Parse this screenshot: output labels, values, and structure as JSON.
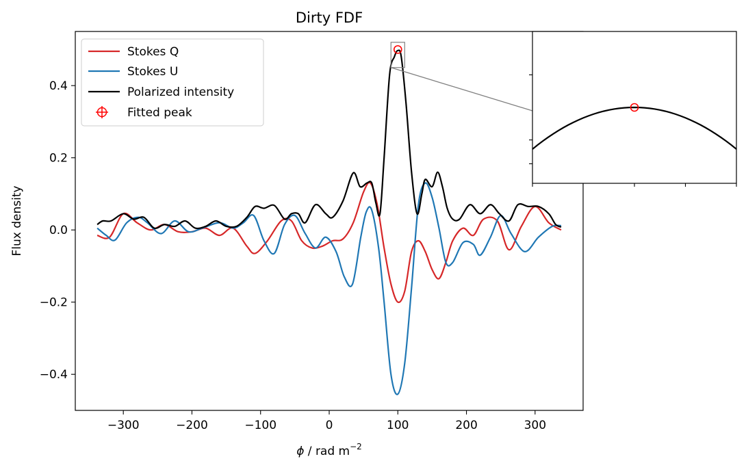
{
  "chart_data": {
    "type": "line",
    "title": "Dirty FDF",
    "xlabel_symbol": "ϕ",
    "xlabel_unit": " / rad m",
    "xlabel_exponent": "−2",
    "ylabel": "Flux density",
    "xlim": [
      -370,
      370
    ],
    "ylim": [
      -0.5,
      0.55
    ],
    "xticks": [
      -300,
      -200,
      -100,
      0,
      100,
      200,
      300
    ],
    "xtick_labels": [
      "−300",
      "−200",
      "−100",
      "0",
      "100",
      "200",
      "300"
    ],
    "yticks": [
      -0.4,
      -0.2,
      0.0,
      0.2,
      0.4
    ],
    "ytick_labels": [
      "−0.4",
      "−0.2",
      "0.0",
      "0.2",
      "0.4"
    ],
    "grid": false,
    "legend": {
      "placement": "top-left",
      "entries": [
        "Stokes Q",
        "Stokes U",
        "Polarized intensity",
        "Fitted peak"
      ]
    },
    "colors": {
      "q": "#d62728",
      "u": "#1f77b4",
      "pi": "#000000",
      "peak": "#ff0000"
    },
    "series": [
      {
        "name": "Stokes Q",
        "x": [
          -338,
          -320,
          -300,
          -280,
          -260,
          -240,
          -220,
          -200,
          -180,
          -160,
          -140,
          -120,
          -108,
          -90,
          -70,
          -55,
          -40,
          -25,
          -10,
          5,
          20,
          35,
          50,
          60,
          70,
          80,
          90,
          100,
          110,
          120,
          130,
          140,
          150,
          160,
          170,
          180,
          195,
          210,
          225,
          245,
          262,
          280,
          300,
          320,
          338
        ],
        "y": [
          -0.015,
          -0.02,
          0.045,
          0.02,
          0.0,
          0.015,
          -0.005,
          -0.005,
          0.005,
          -0.015,
          0.005,
          -0.045,
          -0.065,
          -0.03,
          0.025,
          0.025,
          -0.03,
          -0.05,
          -0.045,
          -0.03,
          -0.025,
          0.02,
          0.105,
          0.13,
          0.07,
          -0.05,
          -0.15,
          -0.2,
          -0.17,
          -0.06,
          -0.03,
          -0.06,
          -0.11,
          -0.135,
          -0.09,
          -0.03,
          0.005,
          -0.015,
          0.03,
          0.025,
          -0.055,
          0.01,
          0.065,
          0.02,
          0.0
        ]
      },
      {
        "name": "Stokes U",
        "x": [
          -338,
          -325,
          -312,
          -295,
          -278,
          -265,
          -245,
          -225,
          -205,
          -185,
          -160,
          -140,
          -125,
          -110,
          -95,
          -80,
          -65,
          -50,
          -35,
          -20,
          -5,
          10,
          22,
          34,
          46,
          54,
          62,
          72,
          80,
          90,
          100,
          110,
          120,
          130,
          140,
          150,
          160,
          170,
          180,
          195,
          210,
          220,
          235,
          250,
          265,
          285,
          305,
          325,
          338
        ],
        "y": [
          0.005,
          -0.015,
          -0.028,
          0.02,
          0.035,
          0.02,
          -0.01,
          0.025,
          -0.005,
          0.005,
          0.02,
          0.005,
          0.02,
          0.04,
          -0.03,
          -0.065,
          0.015,
          0.04,
          -0.01,
          -0.05,
          -0.02,
          -0.06,
          -0.13,
          -0.15,
          -0.02,
          0.05,
          0.055,
          -0.05,
          -0.2,
          -0.4,
          -0.455,
          -0.37,
          -0.16,
          0.07,
          0.13,
          0.09,
          0.005,
          -0.09,
          -0.09,
          -0.035,
          -0.04,
          -0.07,
          -0.02,
          0.04,
          -0.01,
          -0.06,
          -0.02,
          0.01,
          0.012
        ]
      },
      {
        "name": "Polarized intensity",
        "x": [
          -338,
          -330,
          -318,
          -300,
          -285,
          -270,
          -255,
          -240,
          -225,
          -210,
          -195,
          -180,
          -165,
          -150,
          -135,
          -120,
          -108,
          -95,
          -80,
          -65,
          -55,
          -45,
          -35,
          -20,
          -5,
          5,
          20,
          35,
          45,
          55,
          62,
          68,
          74,
          80,
          88,
          95,
          100,
          105,
          112,
          120,
          128,
          135,
          140,
          150,
          158,
          165,
          172,
          180,
          190,
          205,
          220,
          235,
          248,
          262,
          275,
          290,
          305,
          320,
          330,
          338
        ],
        "y": [
          0.015,
          0.025,
          0.025,
          0.045,
          0.03,
          0.035,
          0.005,
          0.015,
          0.01,
          0.025,
          0.005,
          0.01,
          0.025,
          0.01,
          0.01,
          0.035,
          0.065,
          0.06,
          0.068,
          0.03,
          0.045,
          0.045,
          0.02,
          0.07,
          0.045,
          0.035,
          0.08,
          0.158,
          0.12,
          0.13,
          0.13,
          0.075,
          0.045,
          0.2,
          0.43,
          0.48,
          0.497,
          0.48,
          0.35,
          0.16,
          0.045,
          0.1,
          0.14,
          0.12,
          0.16,
          0.12,
          0.06,
          0.03,
          0.03,
          0.07,
          0.045,
          0.07,
          0.045,
          0.025,
          0.07,
          0.065,
          0.065,
          0.045,
          0.015,
          0.008
        ]
      }
    ],
    "fitted_peak": {
      "name": "Fitted peak",
      "x": 100,
      "y": 0.5
    },
    "inset": {
      "xlim": [
        90,
        110
      ],
      "ylim": [
        0.45,
        0.52
      ],
      "xticks": [
        90,
        100,
        105,
        110
      ],
      "yticks": [
        0.459,
        0.47,
        0.5
      ],
      "curve_y_at_edges": 0.4685,
      "peak": {
        "x": 100,
        "y": 0.497
      }
    }
  }
}
